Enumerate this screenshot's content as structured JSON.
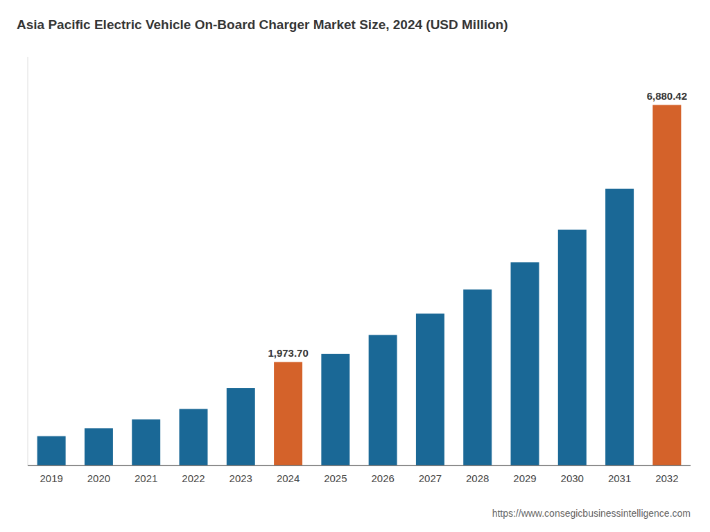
{
  "chart_data": {
    "type": "bar",
    "title": "Asia Pacific Electric Vehicle On-Board Charger Market Size, 2024 (USD Million)",
    "categories": [
      "2019",
      "2020",
      "2021",
      "2022",
      "2023",
      "2024",
      "2025",
      "2026",
      "2027",
      "2028",
      "2029",
      "2030",
      "2031",
      "2032"
    ],
    "values": [
      560,
      710,
      880,
      1080,
      1480,
      1973.7,
      2130,
      2490,
      2900,
      3360,
      3880,
      4500,
      5280,
      6880.42
    ],
    "value_labels": [
      null,
      null,
      null,
      null,
      null,
      "1,973.70",
      null,
      null,
      null,
      null,
      null,
      null,
      null,
      "6,880.42"
    ],
    "data_labels": true,
    "colors": [
      "#1a6896",
      "#1a6896",
      "#1a6896",
      "#1a6896",
      "#1a6896",
      "#d4622a",
      "#1a6896",
      "#1a6896",
      "#1a6896",
      "#1a6896",
      "#1a6896",
      "#1a6896",
      "#1a6896",
      "#d4622a"
    ],
    "ylim": [
      0,
      7800
    ],
    "grid": false,
    "tick_labels": "x",
    "source": "https://www.consegicbusinessintelligence.com"
  }
}
